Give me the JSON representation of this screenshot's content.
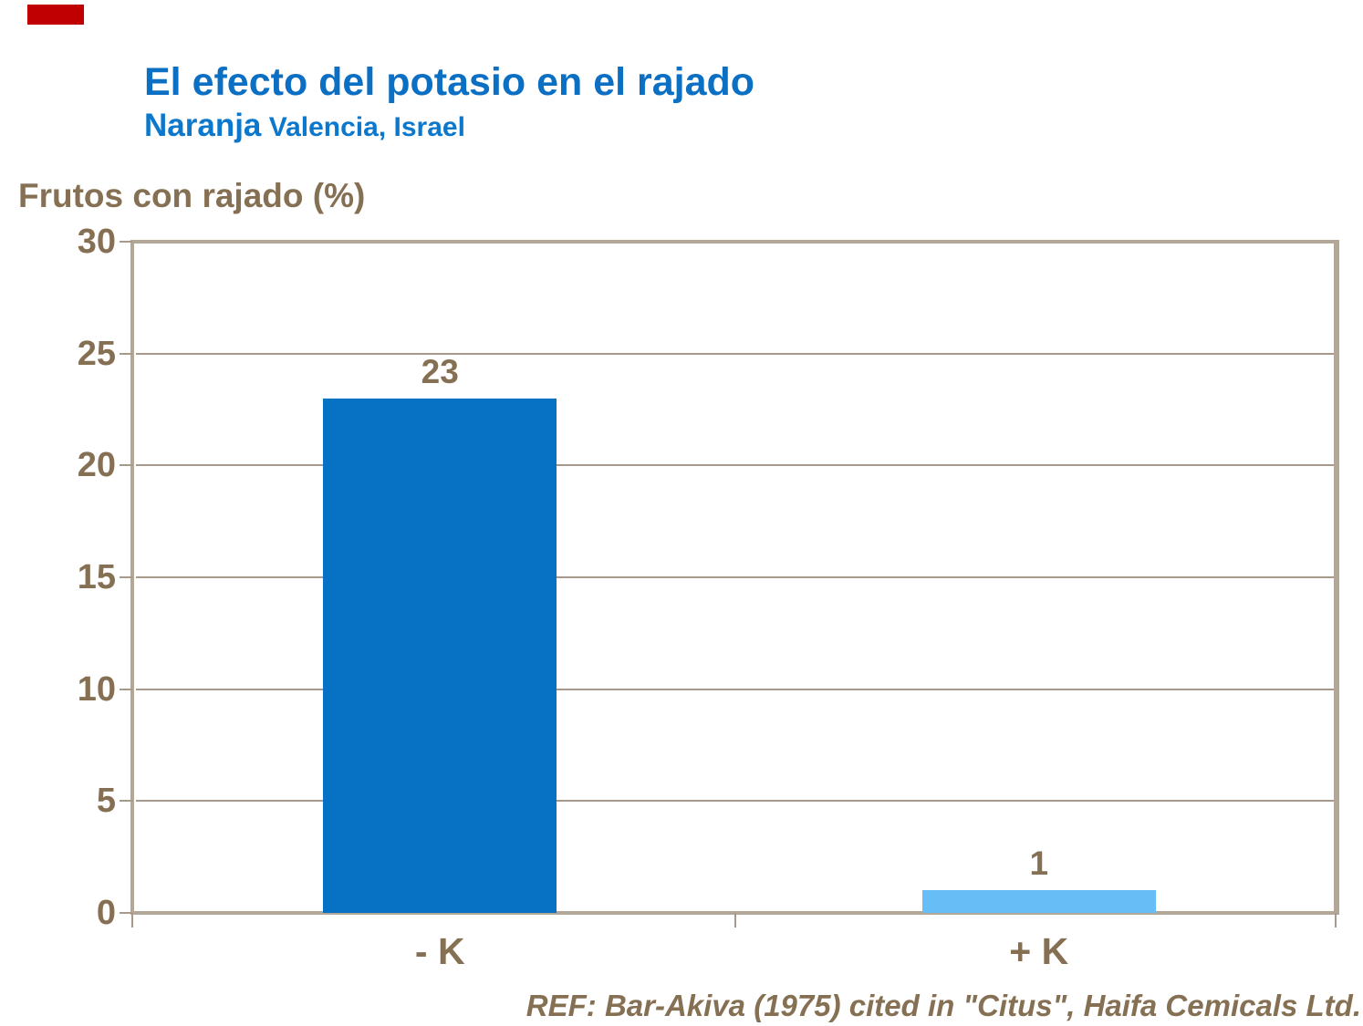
{
  "marker": {
    "color": "#C00000"
  },
  "header": {
    "title": "El efecto del potasio en el rajado",
    "subtitle_main": "Naranja",
    "subtitle_detail": " Valencia, Israel"
  },
  "axis_title": "Frutos con rajado (%)",
  "chart_data": {
    "type": "bar",
    "title": "El efecto del potasio en el rajado",
    "subtitle": "Naranja Valencia, Israel",
    "ylabel": "Frutos con rajado (%)",
    "xlabel": "",
    "categories": [
      "- K",
      "+ K"
    ],
    "values": [
      23,
      1
    ],
    "value_labels": [
      "23",
      "1"
    ],
    "ylim": [
      0,
      30
    ],
    "yticks": [
      0,
      5,
      10,
      15,
      20,
      25,
      30
    ],
    "grid": true,
    "legend": false,
    "bar_colors": [
      "#0772C3",
      "#67BDF6"
    ]
  },
  "footer": {
    "ref": "REF: Bar-Akiva (1975) cited in \"Citus\", Haifa Cemicals Ltd."
  },
  "colors": {
    "title_blue": "#0B6FC4",
    "subtitle_blue": "#0B78CD",
    "text_brown": "#867054",
    "axis_tan": "#B3A798",
    "gridline_tan": "#A79A8B",
    "bar_dark_blue": "#0772C3",
    "bar_light_blue": "#67BDF6",
    "marker_red": "#C00000"
  }
}
